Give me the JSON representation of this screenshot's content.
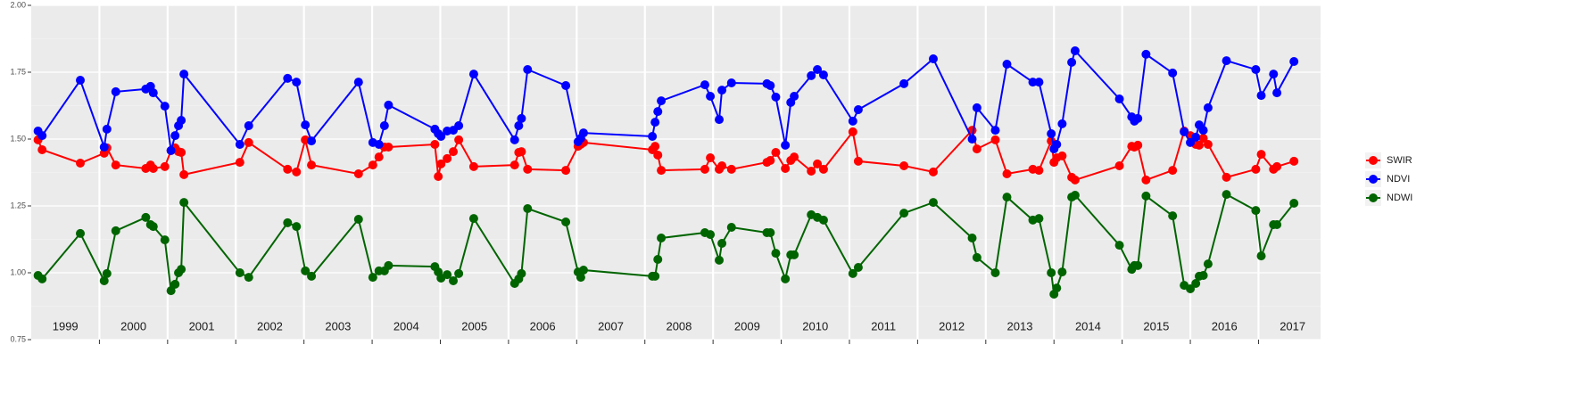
{
  "chart_data": {
    "type": "line",
    "x": [
      1999.1,
      1999.16,
      1999.72,
      2000.07,
      2000.11,
      2000.24,
      2000.68,
      2000.75,
      2000.79,
      2000.96,
      2001.05,
      2001.11,
      2001.16,
      2001.2,
      2001.24,
      2002.06,
      2002.19,
      2002.76,
      2002.89,
      2003.02,
      2003.11,
      2003.8,
      2004.01,
      2004.1,
      2004.18,
      2004.24,
      2004.92,
      2004.97,
      2005.01,
      2005.1,
      2005.19,
      2005.27,
      2005.49,
      2006.09,
      2006.15,
      2006.19,
      2006.28,
      2006.84,
      2007.02,
      2007.06,
      2007.1,
      2008.11,
      2008.15,
      2008.19,
      2008.24,
      2008.88,
      2008.96,
      2009.09,
      2009.13,
      2009.27,
      2009.79,
      2009.84,
      2009.92,
      2010.06,
      2010.14,
      2010.19,
      2010.44,
      2010.53,
      2010.62,
      2011.05,
      2011.13,
      2011.8,
      2012.23,
      2012.8,
      2012.87,
      2013.14,
      2013.31,
      2013.69,
      2013.78,
      2013.96,
      2014.0,
      2014.04,
      2014.12,
      2014.26,
      2014.31,
      2014.96,
      2015.14,
      2015.18,
      2015.23,
      2015.35,
      2015.74,
      2015.91,
      2016.0,
      2016.08,
      2016.13,
      2016.19,
      2016.26,
      2016.53,
      2016.96,
      2017.04,
      2017.22,
      2017.27,
      2017.52
    ],
    "series": [
      {
        "name": "SWIR",
        "color": "#ff0000",
        "values": [
          1.497,
          1.46,
          1.41,
          1.447,
          1.467,
          1.403,
          1.39,
          1.403,
          1.39,
          1.397,
          1.457,
          1.467,
          1.453,
          1.45,
          1.367,
          1.413,
          1.487,
          1.387,
          1.377,
          1.497,
          1.403,
          1.37,
          1.403,
          1.433,
          1.47,
          1.47,
          1.48,
          1.36,
          1.407,
          1.427,
          1.453,
          1.497,
          1.397,
          1.403,
          1.45,
          1.453,
          1.387,
          1.383,
          1.473,
          1.48,
          1.487,
          1.46,
          1.473,
          1.44,
          1.383,
          1.387,
          1.43,
          1.387,
          1.4,
          1.387,
          1.413,
          1.42,
          1.45,
          1.39,
          1.42,
          1.433,
          1.38,
          1.407,
          1.387,
          1.527,
          1.417,
          1.4,
          1.377,
          1.533,
          1.463,
          1.497,
          1.37,
          1.387,
          1.383,
          1.493,
          1.413,
          1.43,
          1.437,
          1.357,
          1.347,
          1.4,
          1.473,
          1.47,
          1.477,
          1.347,
          1.383,
          1.53,
          1.513,
          1.48,
          1.477,
          1.503,
          1.48,
          1.357,
          1.387,
          1.443,
          1.387,
          1.397,
          1.417
        ]
      },
      {
        "name": "NDVI",
        "color": "#0000ff",
        "values": [
          1.53,
          1.513,
          1.72,
          1.47,
          1.537,
          1.677,
          1.687,
          1.697,
          1.673,
          1.623,
          1.457,
          1.513,
          1.55,
          1.57,
          1.743,
          1.48,
          1.55,
          1.727,
          1.713,
          1.553,
          1.493,
          1.713,
          1.487,
          1.48,
          1.55,
          1.627,
          1.537,
          1.52,
          1.51,
          1.53,
          1.533,
          1.55,
          1.743,
          1.497,
          1.55,
          1.577,
          1.76,
          1.7,
          1.49,
          1.503,
          1.523,
          1.51,
          1.563,
          1.603,
          1.643,
          1.703,
          1.66,
          1.573,
          1.683,
          1.71,
          1.707,
          1.7,
          1.657,
          1.477,
          1.637,
          1.66,
          1.737,
          1.76,
          1.74,
          1.567,
          1.61,
          1.707,
          1.8,
          1.5,
          1.617,
          1.533,
          1.78,
          1.713,
          1.713,
          1.52,
          1.463,
          1.48,
          1.557,
          1.787,
          1.83,
          1.65,
          1.583,
          1.567,
          1.577,
          1.817,
          1.747,
          1.527,
          1.487,
          1.507,
          1.553,
          1.533,
          1.617,
          1.793,
          1.76,
          1.663,
          1.743,
          1.673,
          1.79
        ]
      },
      {
        "name": "NDWI",
        "color": "#006400",
        "values": [
          0.99,
          0.977,
          1.147,
          0.97,
          0.997,
          1.157,
          1.207,
          1.18,
          1.173,
          1.123,
          0.933,
          0.957,
          1.0,
          1.013,
          1.263,
          1.0,
          0.983,
          1.187,
          1.173,
          1.007,
          0.987,
          1.2,
          0.983,
          1.007,
          1.007,
          1.027,
          1.023,
          1.003,
          0.98,
          0.993,
          0.97,
          0.997,
          1.203,
          0.96,
          0.977,
          0.997,
          1.24,
          1.19,
          1.003,
          0.983,
          1.01,
          0.987,
          0.987,
          1.05,
          1.13,
          1.15,
          1.143,
          1.047,
          1.11,
          1.17,
          1.15,
          1.15,
          1.073,
          0.977,
          1.067,
          1.067,
          1.217,
          1.207,
          1.197,
          0.997,
          1.02,
          1.223,
          1.263,
          1.13,
          1.057,
          1.0,
          1.283,
          1.197,
          1.203,
          1.0,
          0.92,
          0.943,
          1.003,
          1.283,
          1.29,
          1.103,
          1.013,
          1.027,
          1.027,
          1.287,
          1.213,
          0.953,
          0.94,
          0.96,
          0.987,
          0.99,
          1.033,
          1.293,
          1.233,
          1.063,
          1.18,
          1.18,
          1.26
        ]
      }
    ],
    "xlim": [
      1999,
      2017.91
    ],
    "ylim": [
      0.75,
      2.0
    ],
    "yticks": [
      0.75,
      {
        "value": 1.0,
        "label": "1.00"
      },
      1.25,
      {
        "value": 1.5,
        "label": "1.50"
      },
      1.75,
      {
        "value": 2.0,
        "label": "2.00"
      }
    ],
    "xgrid": [
      2000,
      2001,
      2002,
      2003,
      2004,
      2005,
      2006,
      2007,
      2008,
      2009,
      2010,
      2011,
      2012,
      2013,
      2014,
      2015,
      2016,
      2017
    ],
    "year_labels": [
      {
        "value": 1999.5,
        "label": "1999"
      },
      {
        "value": 2000.5,
        "label": "2000"
      },
      {
        "value": 2001.5,
        "label": "2001"
      },
      {
        "value": 2002.5,
        "label": "2002"
      },
      {
        "value": 2003.5,
        "label": "2003"
      },
      {
        "value": 2004.5,
        "label": "2004"
      },
      {
        "value": 2005.5,
        "label": "2005"
      },
      {
        "value": 2006.5,
        "label": "2006"
      },
      {
        "value": 2007.5,
        "label": "2007"
      },
      {
        "value": 2008.5,
        "label": "2008"
      },
      {
        "value": 2009.5,
        "label": "2009"
      },
      {
        "value": 2010.5,
        "label": "2010"
      },
      {
        "value": 2011.5,
        "label": "2011"
      },
      {
        "value": 2012.5,
        "label": "2012"
      },
      {
        "value": 2013.5,
        "label": "2013"
      },
      {
        "value": 2014.5,
        "label": "2014"
      },
      {
        "value": 2015.5,
        "label": "2015"
      },
      {
        "value": 2016.5,
        "label": "2016"
      },
      {
        "value": 2017.5,
        "label": "2017"
      }
    ],
    "grid": true,
    "legend": "right"
  }
}
